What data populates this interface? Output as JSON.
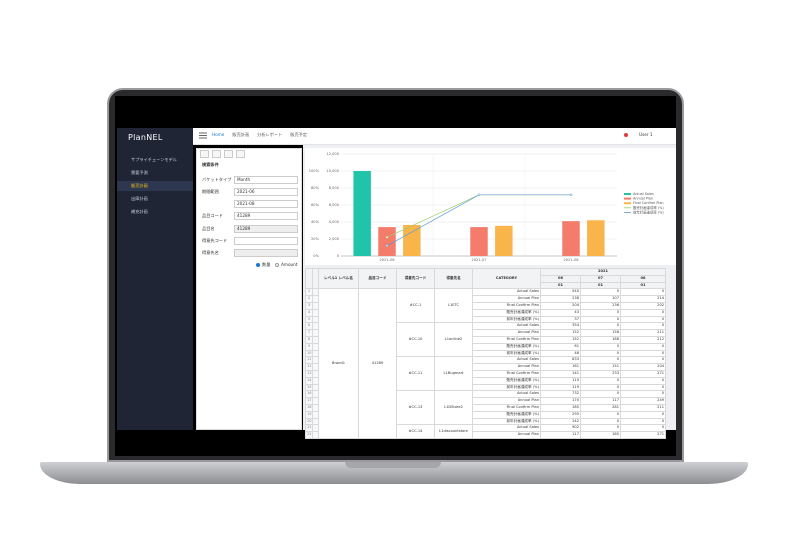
{
  "app": {
    "logo": "PlanNEL",
    "menu": [
      "サプライチェーンモデル",
      "需要予測",
      "販売計画",
      "出庫計画",
      "補充計画"
    ],
    "active_menu": 2,
    "breadcrumb": [
      "Home",
      "販売計画",
      "分析レポート",
      "販売予定"
    ],
    "user": "User 1"
  },
  "filter": {
    "title": "検索条件",
    "bucket_label": "バケットタイプ",
    "bucket_value": "Month",
    "period_label": "期間範囲",
    "period_from": "2021-06",
    "period_to": "2021-08",
    "item_code_label": "品目コード",
    "item_code": "41289",
    "item_name_label": "品目名",
    "item_name": "41289",
    "customer_code_label": "得意先コード",
    "customer_name_label": "得意先名",
    "radio": [
      "数量",
      "Amount"
    ]
  },
  "chart_data": {
    "type": "bar",
    "categories": [
      "2021-06",
      "2021-07",
      "2021-08"
    ],
    "series": [
      {
        "name": "Actual Sales",
        "color": "#20c4a8",
        "values": [
          10000,
          0,
          0
        ]
      },
      {
        "name": "Annual Plan",
        "color": "#f47c6a",
        "values": [
          3400,
          3400,
          4100
        ]
      },
      {
        "name": "Final Confirm Plan",
        "color": "#f9b44a",
        "values": [
          3650,
          3550,
          4200
        ]
      },
      {
        "name": "販売計画達成率 (%)",
        "color": "#9ccc65",
        "type": "line",
        "axis": "y2",
        "values": [
          22,
          72,
          72
        ]
      },
      {
        "name": "前年計画達成率 (%)",
        "color": "#5b9bd5",
        "type": "line",
        "axis": "y2",
        "values": [
          12,
          72,
          72
        ]
      }
    ],
    "ylim": [
      0,
      12000
    ],
    "yticks": [
      0,
      {
        "value": 2000,
        "label": "2,000"
      },
      {
        "value": 4000,
        "label": "4,000"
      },
      {
        "value": 6000,
        "label": "6,000"
      },
      {
        "value": 8000,
        "label": "8,000"
      },
      {
        "value": 10000,
        "label": "10,000"
      },
      {
        "value": 12000,
        "label": "12,000"
      }
    ],
    "y2lim": [
      0,
      120
    ],
    "y2ticks": [
      {
        "value": 0,
        "label": "0%"
      },
      {
        "value": 20,
        "label": "20%"
      },
      {
        "value": 40,
        "label": "40%"
      },
      {
        "value": 60,
        "label": "60%"
      },
      {
        "value": 80,
        "label": "80%"
      },
      {
        "value": 100,
        "label": "100%"
      }
    ],
    "grid": true,
    "legend": "right"
  },
  "table": {
    "headers": [
      "レベル1 レベル名",
      "品目コード",
      "得意先コード",
      "得意先名",
      "CATEGORY"
    ],
    "year": "2021",
    "months": [
      "06",
      "07",
      "08"
    ],
    "sub": [
      "01",
      "01",
      "01"
    ],
    "level1": "Brand1",
    "item_code": "41289",
    "groups": [
      {
        "code": "#CC-1",
        "name": "L1ETC",
        "rows": [
          [
            1,
            "Actual Sales",
            540,
            0,
            0
          ],
          [
            2,
            "Annual Plan",
            238,
            107,
            214
          ],
          [
            3,
            "Final Confirm Plan",
            204,
            236,
            202
          ],
          [
            4,
            "販売計画達成率 (%)",
            43,
            0,
            0
          ],
          [
            5,
            "前年計画達成率 (%)",
            37,
            0,
            0
          ]
        ]
      },
      {
        "code": "#CC-10",
        "name": "L1online2",
        "rows": [
          [
            6,
            "Actual Sales",
            354,
            0,
            0
          ],
          [
            7,
            "Annual Plan",
            152,
            158,
            211
          ],
          [
            8,
            "Final Confirm Plan",
            152,
            188,
            212
          ],
          [
            9,
            "販売計画達成率 (%)",
            61,
            0,
            0
          ],
          [
            10,
            "前年計画達成率 (%)",
            46,
            0,
            0
          ]
        ]
      },
      {
        "code": "#CC-11",
        "name": "L1Bugmart",
        "rows": [
          [
            11,
            "Actual Sales",
            833,
            0,
            0
          ],
          [
            12,
            "Annual Plan",
            161,
            151,
            204
          ],
          [
            13,
            "Final Confirm Plan",
            141,
            233,
            271
          ],
          [
            14,
            "販売計画達成率 (%)",
            115,
            0,
            0
          ],
          [
            15,
            "前年計画達成率 (%)",
            119,
            0,
            0
          ]
        ]
      },
      {
        "code": "#CC-13",
        "name": "L1DStore2",
        "rows": [
          [
            16,
            "Actual Sales",
            732,
            0,
            0
          ],
          [
            17,
            "Annual Plan",
            170,
            117,
            249
          ],
          [
            18,
            "Final Confirm Plan",
            185,
            281,
            211
          ],
          [
            19,
            "販売計画達成率 (%)",
            295,
            0,
            0
          ],
          [
            20,
            "前年計画達成率 (%)",
            242,
            0,
            0
          ]
        ]
      },
      {
        "code": "#CC-14",
        "name": "L1discountstore",
        "rows": [
          [
            21,
            "Actual Sales",
            902,
            0,
            0
          ],
          [
            22,
            "Annual Plan",
            117,
            185,
            271
          ]
        ]
      }
    ]
  }
}
